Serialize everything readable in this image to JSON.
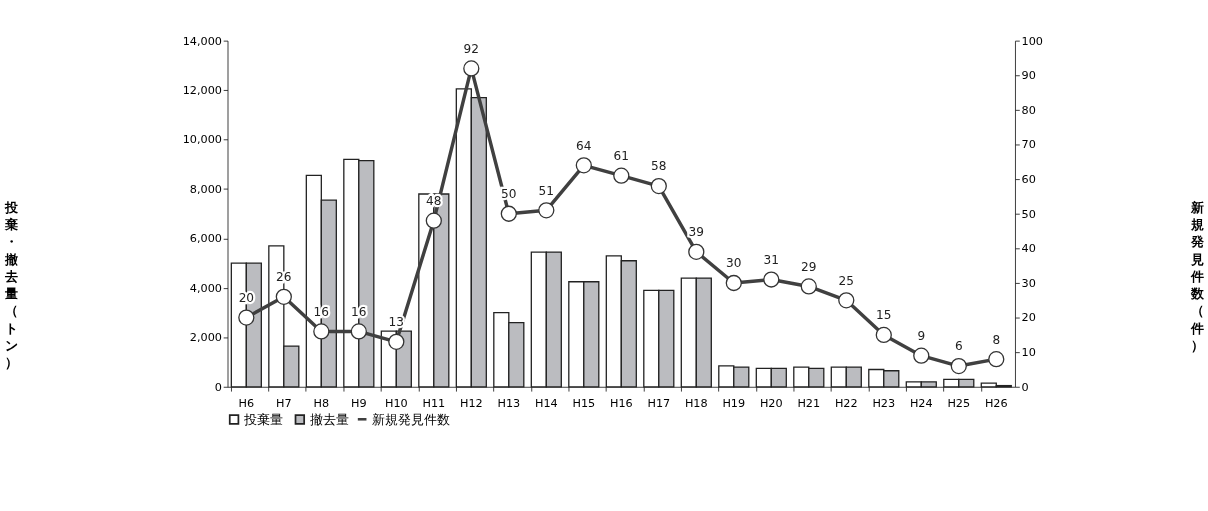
{
  "chart_data": {
    "type": "bar",
    "ylabel": "投棄・撤去量（トン）",
    "y2label": "新規発見件数（件）",
    "categories": [
      "H6",
      "H7",
      "H8",
      "H9",
      "H10",
      "H11",
      "H12",
      "H13",
      "H14",
      "H15",
      "H16",
      "H17",
      "H18",
      "H19",
      "H20",
      "H21",
      "H22",
      "H23",
      "H24",
      "H25",
      "H26"
    ],
    "series": [
      {
        "name": "投棄量",
        "color": "#ffffff",
        "values": [
          5000,
          5700,
          8550,
          9200,
          2250,
          7800,
          12050,
          3000,
          5450,
          4250,
          5300,
          3900,
          4400,
          850,
          750,
          800,
          800,
          700,
          200,
          300,
          150
        ]
      },
      {
        "name": "撤去量",
        "color": "#bbbcc0",
        "values": [
          5000,
          1650,
          7550,
          9150,
          2250,
          7800,
          11700,
          2600,
          5450,
          4250,
          5100,
          3900,
          4400,
          800,
          750,
          750,
          800,
          650,
          200,
          300,
          50
        ]
      },
      {
        "name": "新規発見件数",
        "type": "line",
        "axis": "y2",
        "color": "#404040",
        "marker": "circle",
        "data_labels": true,
        "values": [
          20,
          26,
          16,
          16,
          13,
          48,
          92,
          50,
          51,
          64,
          61,
          58,
          39,
          30,
          31,
          29,
          25,
          15,
          9,
          6,
          8
        ]
      }
    ],
    "ylim": [
      0,
      14000
    ],
    "yticks": [
      {
        "value": 0,
        "label": "0"
      },
      {
        "value": 2000,
        "label": "2,000"
      },
      {
        "value": 4000,
        "label": "4,000"
      },
      {
        "value": 6000,
        "label": "6,000"
      },
      {
        "value": 8000,
        "label": "8,000"
      },
      {
        "value": 10000,
        "label": "10,000"
      },
      {
        "value": 12000,
        "label": "12,000"
      },
      {
        "value": 14000,
        "label": "14,000"
      }
    ],
    "y2lim": [
      0,
      100
    ],
    "y2ticks": [
      0,
      10,
      20,
      30,
      40,
      50,
      60,
      70,
      80,
      90,
      100
    ],
    "grid": false,
    "legend": "bottom"
  }
}
